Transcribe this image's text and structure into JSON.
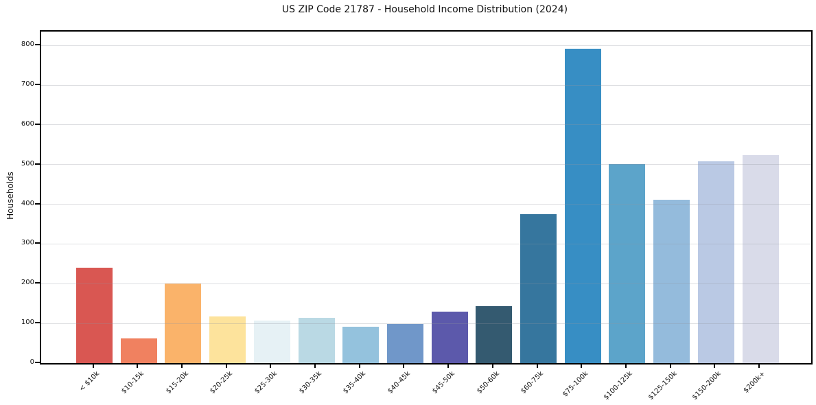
{
  "header": {
    "title": "US ZIP Code 21787 - Household Income Distribution (2024)"
  },
  "chart_data": {
    "type": "bar",
    "title": "US ZIP Code 21787 - Household Income Distribution (2024)",
    "xlabel": "",
    "ylabel": "Households",
    "categories": [
      "< $10k",
      "$10-15k",
      "$15-20k",
      "$20-25k",
      "$25-30k",
      "$30-35k",
      "$35-40k",
      "$40-45k",
      "$45-50k",
      "$50-60k",
      "$60-75k",
      "$75-100k",
      "$100-125k",
      "$125-150k",
      "$150-200k",
      "$200k+"
    ],
    "values": [
      241,
      62,
      201,
      117,
      108,
      114,
      92,
      98,
      130,
      143,
      376,
      792,
      501,
      412,
      509,
      524
    ],
    "bar_colors": [
      "#d95752",
      "#f08160",
      "#fab36a",
      "#fde39c",
      "#e6f1f5",
      "#bad9e4",
      "#94c2dd",
      "#7097c9",
      "#5c59ab",
      "#345a70",
      "#36769e",
      "#378ec4",
      "#5ca4ca",
      "#94bbdc",
      "#bac9e4",
      "#d9dbe9"
    ],
    "yticks": [
      0,
      100,
      200,
      300,
      400,
      500,
      600,
      700,
      800
    ],
    "ylim": [
      0,
      835
    ],
    "grid": "horizontal",
    "grid_color": "rgba(145,150,160,0.30)",
    "spine_color": "#000000",
    "background_color": "#ffffff",
    "legend": null
  }
}
